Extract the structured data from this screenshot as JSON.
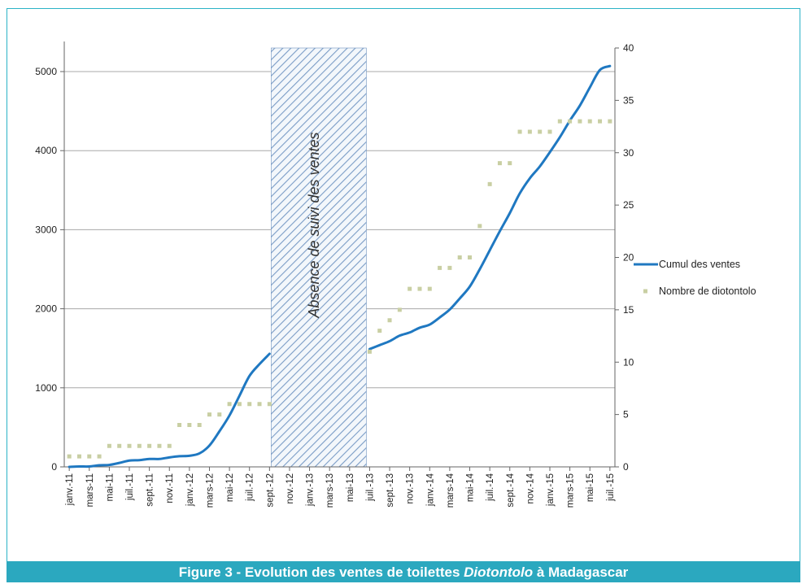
{
  "caption": {
    "prefix": "Figure 3 - Evolution des ventes de toilettes ",
    "italic": "Diotontolo",
    "suffix": " à Madagascar"
  },
  "chart_data": {
    "type": "line",
    "title": "",
    "annotation": "Absence de suivi des ventes",
    "colors": {
      "line": "#1f78c1",
      "markers": "#c9cfa3",
      "hatch": "#7a9cc6",
      "grid": "#a8a8a8"
    },
    "y_left": {
      "ylim": [
        0,
        5000
      ],
      "ticks": [
        0,
        1000,
        2000,
        3000,
        4000,
        5000
      ]
    },
    "y_right": {
      "ylim": [
        0,
        40
      ],
      "ticks": [
        0,
        5,
        10,
        15,
        20,
        25,
        30,
        35,
        40
      ]
    },
    "gap": {
      "from": "sept.-12",
      "to": "juil.-13"
    },
    "tick_labels": [
      "janv.-11",
      "mars-11",
      "mai-11",
      "juil.-11",
      "sept.-11",
      "nov.-11",
      "janv.-12",
      "mars-12",
      "mai-12",
      "juil.-12",
      "sept.-12",
      "nov.-12",
      "janv.-13",
      "mars-13",
      "mai-13",
      "juil.-13",
      "sept.-13",
      "nov.-13",
      "janv.-14",
      "mars-14",
      "mai-14",
      "juil.-14",
      "sept.-14",
      "nov.-14",
      "janv.-15",
      "mars-15",
      "mai-15",
      "juil.-15"
    ],
    "series": [
      {
        "name": "Cumul des ventes",
        "axis": "left",
        "segments": [
          {
            "x": [
              "janv.-11",
              "févr.-11",
              "mars-11",
              "avr.-11",
              "mai-11",
              "juin-11",
              "juil.-11",
              "août-11",
              "sept.-11",
              "oct.-11",
              "nov.-11",
              "déc.-11",
              "janv.-12",
              "févr.-12",
              "mars-12",
              "avr.-12",
              "mai-12",
              "juin-12",
              "juil.-12",
              "août-12",
              "sept.-12"
            ],
            "values": [
              0,
              5,
              5,
              20,
              25,
              50,
              80,
              85,
              100,
              100,
              120,
              135,
              140,
              170,
              270,
              450,
              650,
              900,
              1150,
              1300,
              1430
            ]
          },
          {
            "x": [
              "juil.-13",
              "août-13",
              "sept.-13",
              "oct.-13",
              "nov.-13",
              "déc.-13",
              "janv.-14",
              "févr.-14",
              "mars-14",
              "avr.-14",
              "mai-14",
              "juin-14",
              "juil.-14",
              "août-14",
              "sept.-14",
              "oct.-14",
              "nov.-14",
              "déc.-14",
              "janv.-15",
              "févr.-15",
              "mars-15",
              "avr.-15",
              "mai-15",
              "juin-15",
              "juil.-15"
            ],
            "values": [
              1490,
              1540,
              1590,
              1660,
              1700,
              1760,
              1800,
              1890,
              1990,
              2130,
              2280,
              2500,
              2740,
              2980,
              3210,
              3460,
              3650,
              3800,
              3980,
              4170,
              4380,
              4570,
              4800,
              5020,
              5070
            ]
          }
        ]
      },
      {
        "name": "Nombre de diotontolo",
        "axis": "right",
        "segments": [
          {
            "x": [
              "janv.-11",
              "févr.-11",
              "mars-11",
              "avr.-11",
              "mai-11",
              "juin-11",
              "juil.-11",
              "août-11",
              "sept.-11",
              "oct.-11",
              "nov.-11",
              "déc.-11",
              "janv.-12",
              "févr.-12",
              "mars-12",
              "avr.-12",
              "mai-12",
              "juin-12",
              "juil.-12",
              "août-12",
              "sept.-12"
            ],
            "values": [
              1,
              1,
              1,
              1,
              2,
              2,
              2,
              2,
              2,
              2,
              2,
              4,
              4,
              4,
              5,
              5,
              6,
              6,
              6,
              6,
              6
            ]
          },
          {
            "x": [
              "juil.-13",
              "août-13",
              "sept.-13",
              "oct.-13",
              "nov.-13",
              "déc.-13",
              "janv.-14",
              "févr.-14",
              "mars-14",
              "avr.-14",
              "mai-14",
              "juin-14",
              "juil.-14",
              "août-14",
              "sept.-14",
              "oct.-14",
              "nov.-14",
              "déc.-14",
              "janv.-15",
              "févr.-15",
              "mars-15",
              "avr.-15",
              "mai-15",
              "juin-15",
              "juil.-15"
            ],
            "values": [
              11,
              13,
              14,
              15,
              17,
              17,
              17,
              19,
              19,
              20,
              20,
              23,
              27,
              29,
              29,
              32,
              32,
              32,
              32,
              33,
              33,
              33,
              33,
              33,
              33
            ]
          }
        ]
      }
    ],
    "legend": {
      "placement": "right",
      "entries": [
        "Cumul des ventes",
        "Nombre de diotontolo"
      ]
    }
  }
}
